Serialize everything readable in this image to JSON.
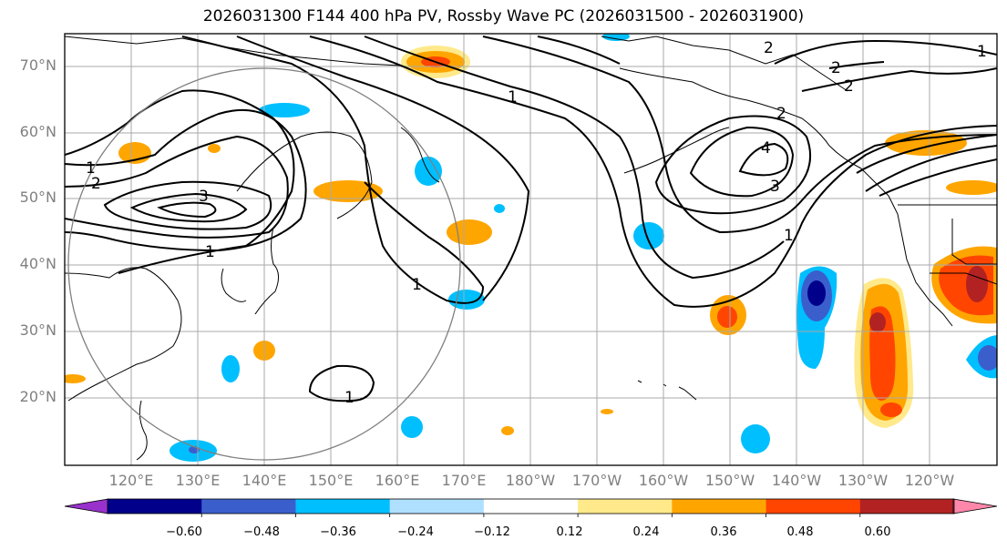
{
  "title": "2026031300 F144 400 hPa PV, Rossby Wave PC (2026031500 - 2026031900)",
  "lat_labels": [
    "70°N",
    "60°N",
    "50°N",
    "40°N",
    "30°N",
    "20°N"
  ],
  "lon_labels": [
    "120°E",
    "130°E",
    "140°E",
    "150°E",
    "160°E",
    "170°E",
    "180°W",
    "170°W",
    "160°W",
    "150°W",
    "140°W",
    "130°W",
    "120°W"
  ],
  "contour_labels": [
    "1",
    "2",
    "3",
    "1",
    "1",
    "1",
    "1",
    "4",
    "3",
    "2",
    "2",
    "2",
    "2",
    "1",
    "1"
  ],
  "colorbar": {
    "ticks": [
      "−0.60",
      "−0.48",
      "−0.36",
      "−0.24",
      "−0.12",
      "0.12",
      "0.24",
      "0.36",
      "0.48",
      "0.60"
    ],
    "colors": [
      "#9932cc",
      "#00008b",
      "#3a5fcd",
      "#00bfff",
      "#b0e0ff",
      "#ffffff",
      "#ffe98a",
      "#ffa500",
      "#ff4500",
      "#b22222",
      "#ff88aa"
    ]
  },
  "shading_colors": {
    "pos1": "#ffe98a",
    "pos2": "#ffa500",
    "pos3": "#ff4500",
    "pos4": "#b22222",
    "neg1": "#b0e0ff",
    "neg2": "#00bfff",
    "neg3": "#3a5fcd",
    "neg4": "#00008b"
  }
}
